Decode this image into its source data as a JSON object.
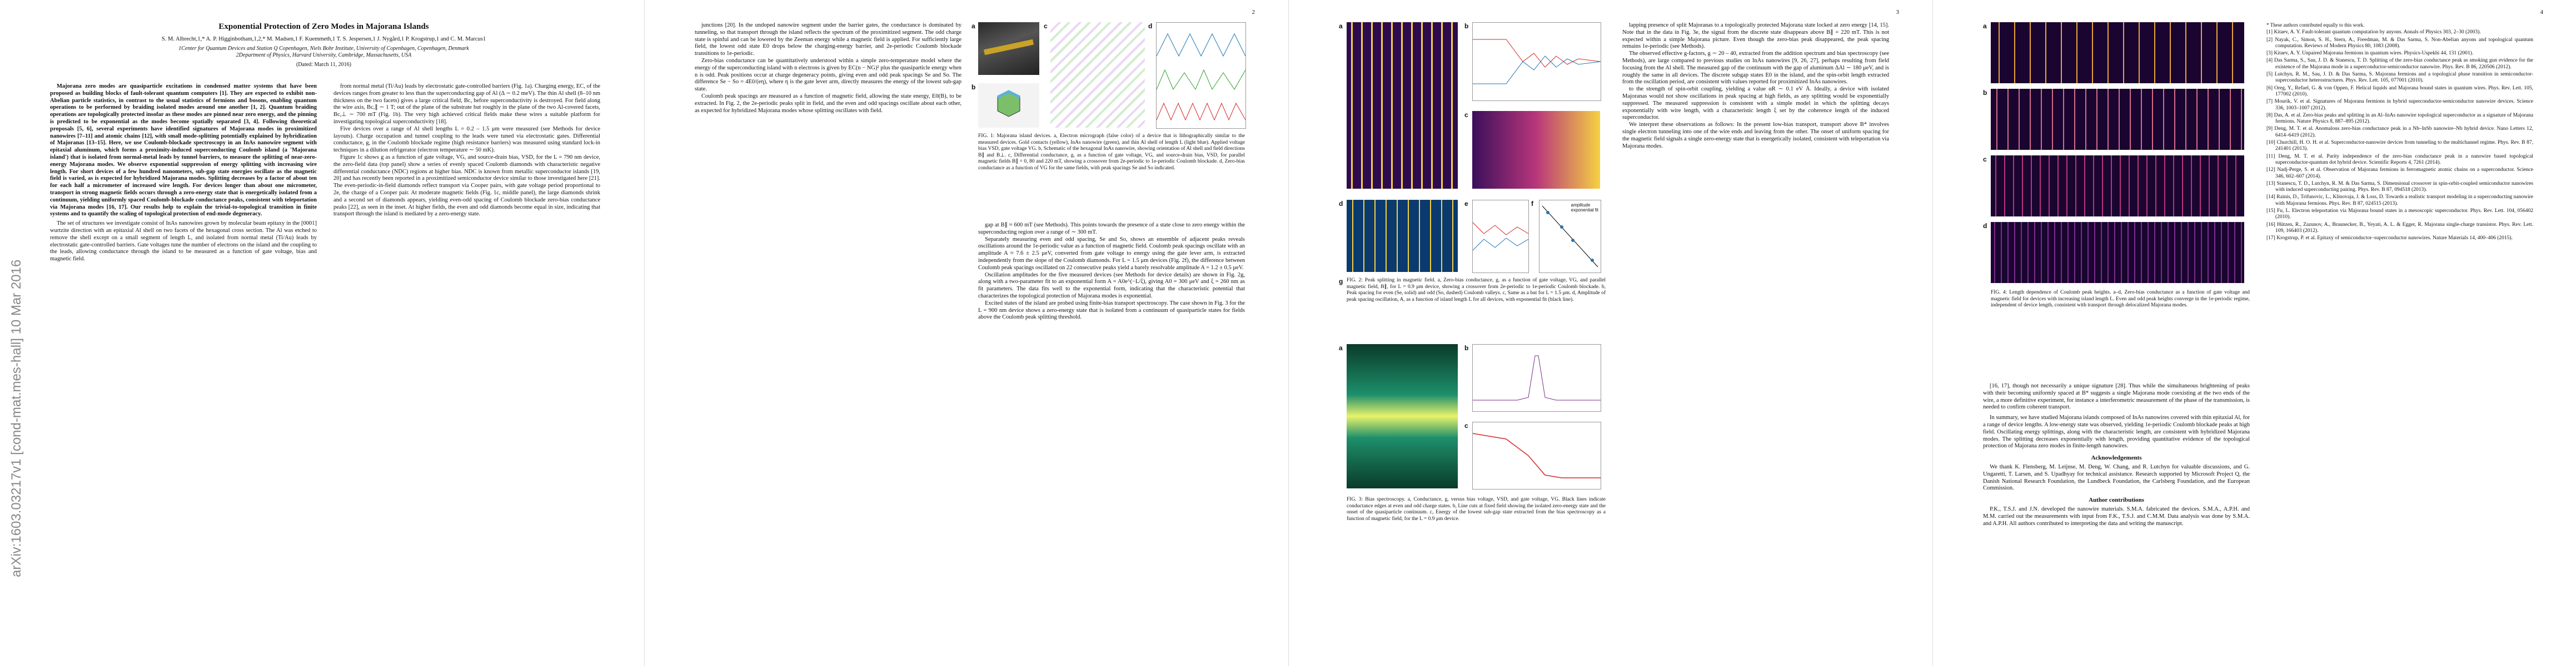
{
  "arxiv_stamp": "arXiv:1603.03217v1  [cond-mat.mes-hall]  10 Mar 2016",
  "header": {
    "title": "Exponential Protection of Zero Modes in Majorana Islands",
    "authors": "S. M. Albrecht,1,* A. P. Higginbotham,1,2,* M. Madsen,1 F. Kuemmeth,1 T. S. Jespersen,1 J. Nygård,1 P. Krogstrup,1 and C. M. Marcus1",
    "affiliations": [
      "1Center for Quantum Devices and Station Q Copenhagen, Niels Bohr Institute, University of Copenhagen, Copenhagen, Denmark",
      "2Department of Physics, Harvard University, Cambridge, Massachusetts, USA"
    ],
    "date": "(Dated: March 11, 2016)",
    "abstract": "Majorana zero modes are quasiparticle excitations in condensed matter systems that have been proposed as building blocks of fault-tolerant quantum computers [1]. They are expected to exhibit non-Abelian particle statistics, in contrast to the usual statistics of fermions and bosons, enabling quantum operations to be performed by braiding isolated modes around one another [1, 2]. Quantum braiding operations are topologically protected insofar as these modes are pinned near zero energy, and the pinning is predicted to be exponential as the modes become spatially separated [3, 4]. Following theoretical proposals [5, 6], several experiments have identified signatures of Majorana modes in proximitized nanowires [7–11] and atomic chains [12], with small mode-splitting potentially explained by hybridization of Majoranas [13–15]. Here, we use Coulomb-blockade spectroscopy in an InAs nanowire segment with epitaxial aluminum, which forms a proximity-induced superconducting Coulomb island (a 'Majorana island') that is isolated from normal-metal leads by tunnel barriers, to measure the splitting of near-zero-energy Majorana modes. We observe exponential suppression of energy splitting with increasing wire length. For short devices of a few hundred nanometers, sub-gap state energies oscillate as the magnetic field is varied, as is expected for hybridized Majorana modes. Splitting decreases by a factor of about ten for each half a micrometer of increased wire length. For devices longer than about one micrometer, transport in strong magnetic fields occurs through a zero-energy state that is energetically isolated from a continuum, yielding uniformly spaced Coulomb-blockade conductance peaks, consistent with teleportation via Majorana modes [16, 17]. Our results help to explain the trivial-to-topological transition in finite systems and to quantify the scaling of topological protection of end-mode degeneracy."
  },
  "pages": [
    {
      "col1": [
        "The set of structures we investigate consist of InAs nanowires grown by molecular beam epitaxy in the [0001] wurtzite direction with an epitaxial Al shell on two facets of the hexagonal cross section. The Al was etched to remove the shell except on a small segment of length L, and isolated from normal metal (Ti/Au) leads by electrostatic gate-controlled barriers. Gate voltages tune the number of electrons on the island and the coupling to the leads, allowing conductance through the island to be measured as a function of gate voltage, bias and magnetic field."
      ],
      "col2": [
        "from normal metal (Ti/Au) leads by electrostatic gate-controlled barriers (Fig. 1a). Charging energy, EC, of the devices ranges from greater to less than the superconducting gap of Al (Δ ∼ 0.2 meV). The thin Al shell (8–10 nm thickness on the two facets) gives a large critical field, Bc, before superconductivity is destroyed. For field along the wire axis, Bc,∥ ∼ 1 T; out of the plane of the substrate but roughly in the plane of the two Al-covered facets, Bc,⊥ ∼ 700 mT (Fig. 1b). The very high achieved critical fields make these wires a suitable platform for investigating topological superconductivity [18].",
        "Five devices over a range of Al shell lengths L = 0.2 – 1.5 μm were measured (see Methods for device layouts). Charge occupation and tunnel coupling to the leads were tuned via electrostatic gates. Differential conductance, g, in the Coulomb blockade regime (high resistance barriers) was measured using standard lock-in techniques in a dilution refrigerator (electron temperature ∼ 50 mK).",
        "Figure 1c shows g as a function of gate voltage, VG, and source-drain bias, VSD, for the L = 790 nm device, the zero-field data (top panel) show a series of evenly spaced Coulomb diamonds with characteristic negative differential conductance (NDC) regions at higher bias. NDC is known from metallic superconductor islands [19, 20] and has recently been reported in a proximitized semiconductor device similar to those investigated here [21]. The even-periodic-in-field diamonds reflect transport via Cooper pairs, with gate voltage period proportional to 2e, the charge of a Cooper pair. At moderate magnetic fields (Fig. 1c, middle panel), the large diamonds shrink and a second set of diamonds appears, yielding even-odd spacing of Coulomb blockade zero-bias conductance peaks [22], as seen in the inset. At higher fields, the even and odd diamonds become equal in size, indicating that transport through the island is mediated by a zero-energy state."
      ]
    },
    {
      "number": "2",
      "panel_labels": [
        "a",
        "b",
        "c",
        "d"
      ],
      "caption": "FIG. 1: Majorana island devices. a, Electron micrograph (false color) of a device that is lithographically similar to the measured devices. Gold contacts (yellow), InAs nanowire (green), and thin Al shell of length L (light blue). Applied voltage bias VSD, gate voltage VG. b, Schematic of the hexagonal InAs nanowire, showing orientation of Al shell and field directions B∥ and B⊥. c, Differential conductance, g, as a function of gate voltage, VG, and source-drain bias, VSD, for parallel magnetic fields B∥ = 0, 80 and 220 mT, showing a crossover from 2e-periodic to 1e-periodic Coulomb blockade. d, Zero-bias conductance as a function of VG for the same fields, with peak spacings Se and So indicated.",
      "col1": [
        "junctions [20]. In the undoped nanowire segment under the barrier gates, the conductance is dominated by tunneling, so that transport through the island reflects the spectrum of the proximitized segment. The odd charge state is spinful and can be lowered by the Zeeman energy while a magnetic field is applied. For sufficiently large field, the lowest odd state E0 drops below the charging-energy barrier, and 2e-periodic Coulomb blockade transitions to 1e-periodic.",
        "Zero-bias conductance can be quantitatively understood within a simple zero-temperature model where the energy of the superconducting island with n electrons is given by EC(n − NG)² plus the quasiparticle energy when n is odd. Peak positions occur at charge degeneracy points, giving even and odd peak spacings Se and So. The difference Se − So = 4E0/(eη), where η is the gate lever arm, directly measures the energy of the lowest sub-gap state.",
        "Coulomb peak spacings are measured as a function of magnetic field, allowing the state energy, E0(B), to be extracted. In Fig. 2, the 2e-periodic peaks split in field, and the even and odd spacings oscillate about each other, as expected for hybridized Majorana modes whose splitting oscillates with field."
      ],
      "col2": [
        "gap at B∥ ≈ 600 mT (see Methods). This points towards the presence of a state close to zero energy within the superconducting region over a range of ∼ 300 mT.",
        "Separately measuring even and odd spacing, Se and So, shows an ensemble of adjacent peaks reveals oscillations around the 1e-periodic value as a function of magnetic field. Coulomb peak spacings oscillate with an amplitude A ≈ 7.6 ± 2.5 μeV, converted from gate voltage to energy using the gate lever arm, is extracted independently from the slope of the Coulomb diamonds. For L = 1.5 μm devices (Fig. 2f), the difference between Coulomb peak spacings oscillated on 22 consecutive peaks yield a barely resolvable amplitude A = 1.2 ± 0.5 μeV.",
        "Oscillation amplitudes for the five measured devices (see Methods for device details) are shown in Fig. 2g, along with a two-parameter fit to an exponential form A = A0e^(−L/ξ), giving A0 = 300 μeV and ξ = 260 nm as fit parameters. The data fits well to the exponential form, indicating that the characteristic potential that characterizes the topological protection of Majorana modes is exponential.",
        "Excited states of the island are probed using finite-bias transport spectroscopy. The case shown in Fig. 3 for the L = 900 nm device shows a zero-energy state that is isolated from a continuum of quasiparticle states for fields above the Coulomb peak splitting threshold."
      ]
    },
    {
      "number": "3",
      "fig2_panels": [
        "a",
        "b",
        "c",
        "d",
        "e",
        "f",
        "g"
      ],
      "fig2_caption": "FIG. 2: Peak splitting in magnetic field. a, Zero-bias conductance, g, as a function of gate voltage, VG, and parallel magnetic field, B∥, for L = 0.9 μm device, showing a crossover from 2e-periodic to 1e-periodic Coulomb blockade. b, Peak spacing for even (Se, solid) and odd (So, dashed) Coulomb valleys. c, Same as a but for L = 1.5 μm. d, Amplitude of peak spacing oscillation, A, as a function of island length L for all devices, with exponential fit (black line).",
      "fig2_legend": [
        "amplitude",
        "exponential fit"
      ],
      "fig3_panels": [
        "a",
        "b",
        "c"
      ],
      "fig3_caption": "FIG. 3: Bias spectroscopy. a, Conductance, g, versus bias voltage, VSD, and gate voltage, VG. Black lines indicate conductance edges at even and odd charge states. b, Line cuts at fixed field showing the isolated zero-energy state and the onset of the quasiparticle continuum. c, Energy of the lowest sub-gap state extracted from the bias spectroscopy as a function of magnetic field, for the L = 0.9 μm device.",
      "col2": [
        "lapping presence of split Majoranas to a topologically protected Majorana state locked at zero energy [14, 15]. Note that in the data in Fig. 3e, the signal from the discrete state disappears above B∥ = 220 mT. This is not expected within a simple Majorana picture. Even though the zero-bias peak disappeared, the peak spacing remains 1e-periodic (see Methods).",
        "The observed effective g-factors, g ∼ 20 – 40, extracted from the addition spectrum and bias spectroscopy (see Methods), are large compared to previous studies on InAs nanowires [9, 26, 27], perhaps resulting from field focusing from the Al shell. The measured gap of the continuum with the gap of aluminum ΔAl ∼ 180 μeV, and is roughly the same in all devices. The discrete subgap states E0 in the island, and the spin-orbit length extracted from the oscillation period, are consistent with values reported for proximitized InAs nanowires.",
        "to the strength of spin-orbit coupling, yielding a value αR ∼ 0.1 eV Å. Ideally, a device with isolated Majoranas would not show oscillations in peak spacing at high fields, as any splitting would be exponentially suppressed. The measured suppression is consistent with a simple model in which the splitting decays exponentially with wire length, with a characteristic length ξ set by the coherence length of the induced superconductor.",
        "We interpret these observations as follows: In the present low-bias transport, transport above B* involves single electron tunneling into one of the wire ends and leaving from the other. The onset of uniform spacing for the magnetic field signals a single zero-energy state that is energetically isolated, consistent with teleportation via Majorana modes."
      ]
    },
    {
      "number": "4",
      "fig4_panels": [
        "a",
        "b",
        "c",
        "d"
      ],
      "fig4_caption": "FIG. 4: Length dependence of Coulomb peak heights. a–d, Zero-bias conductance as a function of gate voltage and magnetic field for devices with increasing island length L. Even and odd peak heights converge in the 1e-periodic regime, independent of device length, consistent with transport through delocalized Majorana modes.",
      "col1": [
        "[16, 17], though not necessarily a unique signature [28]. Thus while the simultaneous brightening of peaks with their becoming uniformly spaced at B* suggests a single Majorana mode coexisting at the two ends of the wire, a more definitive experiment, for instance a interferometric measurement of the phase of the transmission, is needed to confirm coherent transport."
      ],
      "col2_summary": "In summary, we have studied Majorana islands composed of InAs nanowires covered with thin epitaxial Al, for a range of device lengths. A low-energy state was observed, yielding 1e-periodic Coulomb blockade peaks at high field. Oscillating energy splittings, along with the characteristic length, are consistent with hybridized Majorana modes. The splitting decreases exponentially with length, providing quantitative evidence of the topological protection of Majorana zero modes in finite-length nanowires.",
      "ack_heading": "Acknowledgements",
      "ack_text": "We thank K. Flensberg, M. Leijnse, M. Deng, W. Chang, and R. Lutchyn for valuable discussions, and G. Ungaretti, T. Larsen, and S. Upadhyay for technical assistance. Research supported by Microsoft Project Q, the Danish National Research Foundation, the Lundbeck Foundation, the Carlsberg Foundation, and the European Commission.",
      "contrib_heading": "Author contributions",
      "contrib_text": "P.K., T.S.J. and J.N. developed the nanowire materials. S.M.A. fabricated the devices. S.M.A., A.P.H. and M.M. carried out the measurements with input from F.K., T.S.J. and C.M.M. Data analysis was done by S.M.A. and A.P.H. All authors contributed to interpreting the data and writing the manuscript.",
      "footnote": "* These authors contributed equally to this work.",
      "references": [
        "[1] Kitaev, A. Y. Fault-tolerant quantum computation by anyons. Annals of Physics 303, 2–30 (2003).",
        "[2] Nayak, C., Simon, S. H., Stern, A., Freedman, M. & Das Sarma, S. Non-Abelian anyons and topological quantum computation. Reviews of Modern Physics 80, 1083 (2008).",
        "[3] Kitaev, A. Y. Unpaired Majorana fermions in quantum wires. Physics-Uspekhi 44, 131 (2001).",
        "[4] Das Sarma, S., Sau, J. D. & Stanescu, T. D. Splitting of the zero-bias conductance peak as smoking gun evidence for the existence of the Majorana mode in a superconductor-semiconductor nanowire. Phys. Rev. B 86, 220506 (2012).",
        "[5] Lutchyn, R. M., Sau, J. D. & Das Sarma, S. Majorana fermions and a topological phase transition in semiconductor-superconductor heterostructures. Phys. Rev. Lett. 105, 077001 (2010).",
        "[6] Oreg, Y., Refael, G. & von Oppen, F. Helical liquids and Majorana bound states in quantum wires. Phys. Rev. Lett. 105, 177002 (2010).",
        "[7] Mourik, V. et al. Signatures of Majorana fermions in hybrid superconductor-semiconductor nanowire devices. Science 336, 1003–1007 (2012).",
        "[8] Das, A. et al. Zero-bias peaks and splitting in an Al–InAs nanowire topological superconductor as a signature of Majorana fermions. Nature Physics 8, 887–895 (2012).",
        "[9] Deng, M. T. et al. Anomalous zero-bias conductance peak in a Nb–InSb nanowire–Nb hybrid device. Nano Letters 12, 6414–6419 (2012).",
        "[10] Churchill, H. O. H. et al. Superconductor-nanowire devices from tunneling to the multichannel regime. Phys. Rev. B 87, 241401 (2013).",
        "[11] Deng, M. T. et al. Parity independence of the zero-bias conductance peak in a nanowire based topological superconductor-quantum dot hybrid device. Scientific Reports 4, 7261 (2014).",
        "[12] Nadj-Perge, S. et al. Observation of Majorana fermions in ferromagnetic atomic chains on a superconductor. Science 346, 602–607 (2014).",
        "[13] Stanescu, T. D., Lutchyn, R. M. & Das Sarma, S. Dimensional crossover in spin-orbit-coupled semiconductor nanowires with induced superconducting pairing. Phys. Rev. B 87, 094518 (2013).",
        "[14] Rainis, D., Trifunovic, L., Klinovaja, J. & Loss, D. Towards a realistic transport modeling in a superconducting nanowire with Majorana fermions. Phys. Rev. B 87, 024515 (2013).",
        "[15] Fu, L. Electron teleportation via Majorana bound states in a mesoscopic superconductor. Phys. Rev. Lett. 104, 056402 (2010).",
        "[16] Hützen, R., Zazunov, A., Braunecker, B., Yeyati, A. L. & Egger, R. Majorana single-charge transistor. Phys. Rev. Lett. 109, 166403 (2012).",
        "[17] Krogstrup, P. et al. Epitaxy of semiconductor–superconductor nanowires. Nature Materials 14, 400–406 (2015)."
      ]
    }
  ]
}
